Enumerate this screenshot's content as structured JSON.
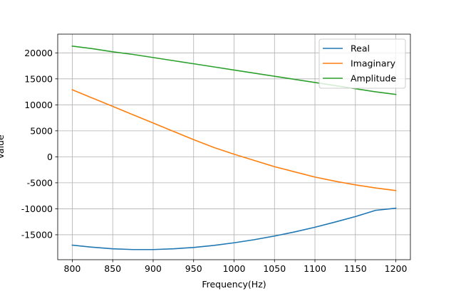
{
  "chart_data": {
    "type": "line",
    "title": "",
    "xlabel": "Frequency(Hz)",
    "ylabel": "Value",
    "xlim": [
      782,
      1218
    ],
    "ylim": [
      -19800,
      23600
    ],
    "xticks": [
      800,
      850,
      900,
      950,
      1000,
      1050,
      1100,
      1150,
      1200
    ],
    "yticks": [
      -15000,
      -10000,
      -5000,
      0,
      5000,
      10000,
      15000,
      20000
    ],
    "grid": true,
    "legend_position": "top-right",
    "x": [
      800,
      825,
      850,
      875,
      900,
      925,
      950,
      975,
      1000,
      1025,
      1050,
      1075,
      1100,
      1125,
      1150,
      1175,
      1200
    ],
    "series": [
      {
        "name": "Real",
        "color": "#1f77b4",
        "values": [
          -17000,
          -17400,
          -17700,
          -17850,
          -17850,
          -17700,
          -17450,
          -17050,
          -16550,
          -15950,
          -15250,
          -14450,
          -13550,
          -12550,
          -11500,
          -10300,
          -9900
        ]
      },
      {
        "name": "Imaginary",
        "color": "#ff7f0e",
        "values": [
          12900,
          11300,
          9700,
          8100,
          6500,
          4900,
          3300,
          1800,
          500,
          -700,
          -1900,
          -2900,
          -3900,
          -4700,
          -5400,
          -6000,
          -6500
        ]
      },
      {
        "name": "Amplitude",
        "color": "#2ca02c",
        "values": [
          21300,
          20800,
          20200,
          19700,
          19100,
          18500,
          17900,
          17300,
          16700,
          16100,
          15500,
          14900,
          14300,
          13700,
          13100,
          12500,
          12000
        ]
      }
    ]
  }
}
